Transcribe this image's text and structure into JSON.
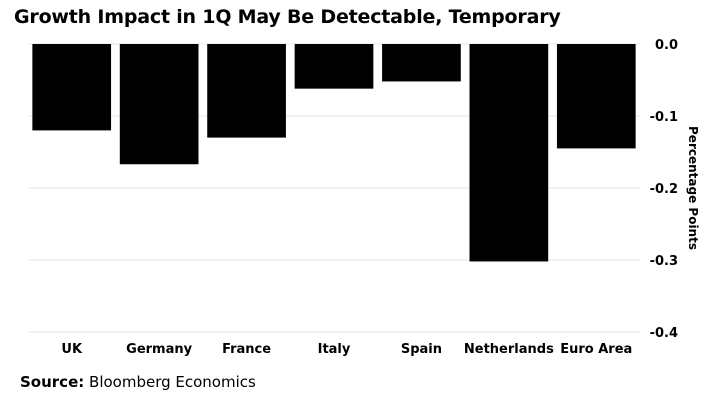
{
  "title": "Growth Impact in 1Q May Be Detectable, Temporary",
  "source": {
    "label": "Source:",
    "text": "Bloomberg Economics"
  },
  "chart_data": {
    "type": "bar",
    "title": "Growth Impact in 1Q May Be Detectable, Temporary",
    "categories": [
      "UK",
      "Germany",
      "France",
      "Italy",
      "Spain",
      "Netherlands",
      "Euro Area"
    ],
    "values": [
      -0.12,
      -0.167,
      -0.13,
      -0.062,
      -0.052,
      -0.302,
      -0.145
    ],
    "xlabel": "",
    "ylabel": "Percentage Points",
    "ylim": [
      -0.4,
      0.0
    ],
    "yticks": [
      0.0,
      -0.1,
      -0.2,
      -0.3,
      -0.4
    ],
    "ytick_labels": [
      "0.0",
      "-0.1",
      "-0.2",
      "-0.3",
      "-0.4"
    ],
    "y_axis_side": "right",
    "grid": true,
    "bar_color": "#000000",
    "grid_color": "#e6e6e6"
  }
}
